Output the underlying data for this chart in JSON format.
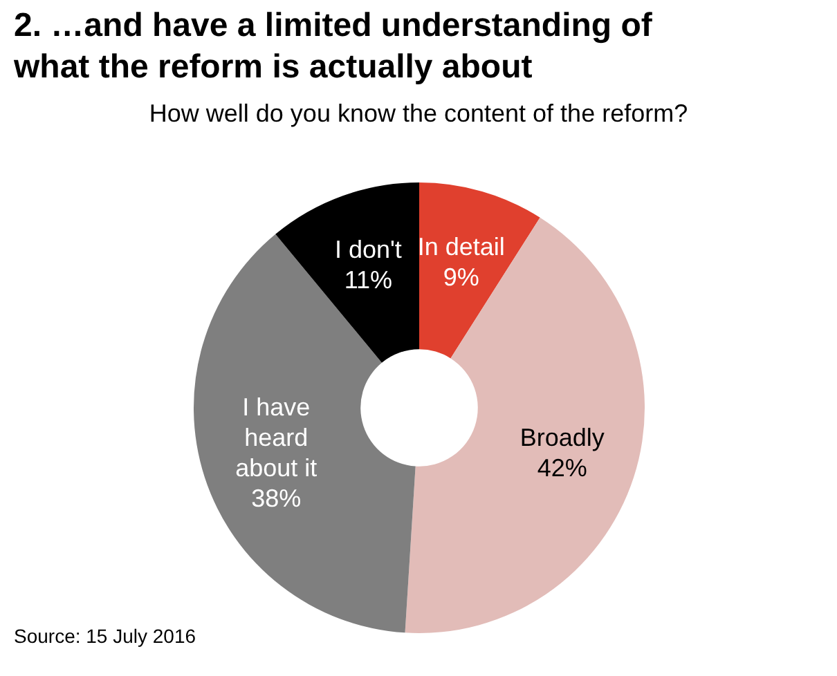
{
  "chart_data": {
    "type": "donut",
    "title": "2. …and have a limited understanding of what the reform is actually about",
    "subtitle": "How well do you know the content of the reform?",
    "categories": [
      "In detail",
      "Broadly",
      "I have heard about it",
      "I don't"
    ],
    "values": [
      9,
      42,
      38,
      11
    ],
    "colors": [
      "#e0402e",
      "#e2bcb8",
      "#7f7f7f",
      "#000000"
    ],
    "value_labels": [
      "9%",
      "42%",
      "38%",
      "11%"
    ],
    "legend": false,
    "annotations": [
      "Source: 15 July 2016"
    ]
  }
}
